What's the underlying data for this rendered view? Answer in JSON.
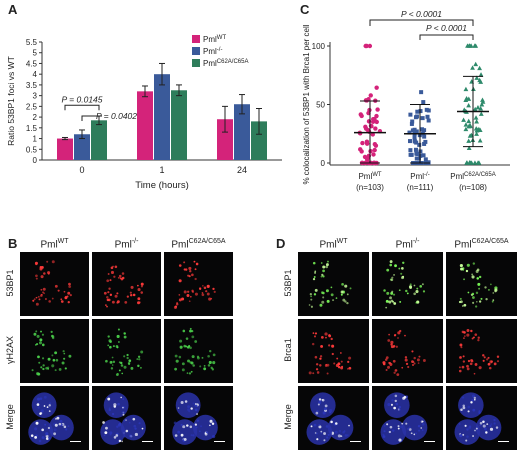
{
  "panels": {
    "A": {
      "letter": "A",
      "chart_data": {
        "type": "bar",
        "categories": [
          "0",
          "1",
          "24"
        ],
        "series": [
          {
            "name": "WT",
            "color": "#d4237a",
            "values": [
              1.0,
              3.2,
              1.9
            ],
            "errors": [
              0.05,
              0.25,
              0.6
            ]
          },
          {
            "name": "-/-",
            "color": "#3a5a9a",
            "values": [
              1.2,
              4.0,
              2.6
            ],
            "errors": [
              0.2,
              0.5,
              0.45
            ]
          },
          {
            "name": "C62A/C65A",
            "color": "#2e7d5b",
            "values": [
              1.85,
              3.25,
              1.8
            ],
            "errors": [
              0.2,
              0.25,
              0.6
            ]
          }
        ],
        "legend_prefix": "Pml",
        "xlabel": "Time (hours)",
        "ylabel": "Ratio 53BP1 foci vs WT",
        "ylim": [
          0,
          5.5
        ],
        "yticks": [
          "0",
          "0.5",
          "1",
          "1.5",
          "2",
          "2.5",
          "3",
          "3.5",
          "4",
          "4.5",
          "5",
          "5.5"
        ],
        "annotations": [
          "P = 0.0145",
          "P = 0.0402"
        ]
      }
    },
    "C": {
      "letter": "C",
      "chart_data": {
        "type": "scatter",
        "groups": [
          {
            "name": "WT",
            "n_label": "(n=103)",
            "color": "#d4237a",
            "mean": 26,
            "sd": 27
          },
          {
            "name": "-/-",
            "n_label": "(n=111)",
            "color": "#3a5a9a",
            "mean": 25,
            "sd": 25
          },
          {
            "name": "C62A/C65A",
            "n_label": "(n=108)",
            "color": "#2e8a6b",
            "mean": 44,
            "sd": 30
          }
        ],
        "group_prefix": "Pml",
        "ylabel": "% colocalization of 53BP1 with Brca1 per cell",
        "ylim": [
          0,
          100
        ],
        "yticks": [
          "0",
          "50",
          "100"
        ],
        "annotations": [
          "P < 0.0001",
          "P < 0.0001"
        ]
      }
    },
    "B": {
      "letter": "B",
      "columns": [
        {
          "base": "Pml",
          "sup": "WT"
        },
        {
          "base": "Pml",
          "sup": "-/-"
        },
        {
          "base": "Pml",
          "sup": "C62A/C65A"
        }
      ],
      "rows": [
        "53BP1",
        "γH2AX",
        "Merge"
      ]
    },
    "D": {
      "letter": "D",
      "columns": [
        {
          "base": "Pml",
          "sup": "WT"
        },
        {
          "base": "Pml",
          "sup": "-/-"
        },
        {
          "base": "Pml",
          "sup": "C62A/C65A"
        }
      ],
      "rows": [
        "53BP1",
        "Brca1",
        "Merge"
      ]
    }
  }
}
